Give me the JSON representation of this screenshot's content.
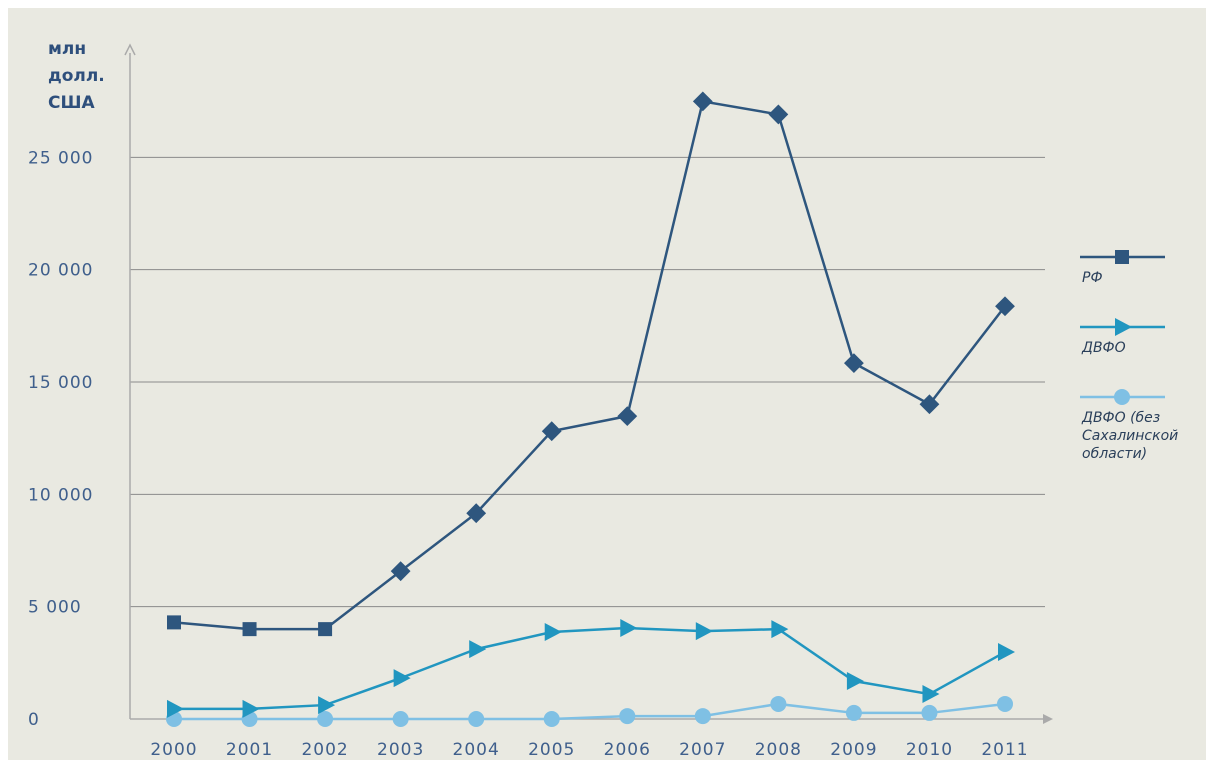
{
  "chart_data": {
    "type": "line",
    "y_axis_label": "млн долл. США",
    "x": [
      "2000",
      "2001",
      "2002",
      "2003",
      "2004",
      "2005",
      "2006",
      "2007",
      "2008",
      "2009",
      "2010",
      "2011"
    ],
    "series": [
      {
        "name": "РФ",
        "color": "#2e567e",
        "values": [
          4300,
          4000,
          4000,
          6580,
          9160,
          12810,
          13480,
          27490,
          26910,
          15840,
          14010,
          18370
        ]
      },
      {
        "name": "ДВФО",
        "color": "#2196c0",
        "values": [
          450,
          450,
          620,
          1820,
          3110,
          3870,
          4050,
          3910,
          4000,
          1690,
          1110,
          2980
        ]
      },
      {
        "name": "ДВФО (без Сахалинской области)",
        "color": "#7fc0e4",
        "values": [
          0,
          0,
          0,
          0,
          0,
          0,
          130,
          130,
          670,
          270,
          270,
          670
        ]
      }
    ],
    "ylim": [
      0,
      30000
    ],
    "yticks": [
      0,
      {
        "value": 5000,
        "label": "5 000"
      },
      {
        "value": 10000,
        "label": "10 000"
      },
      {
        "value": 15000,
        "label": "15 000"
      },
      {
        "value": 20000,
        "label": "20 000"
      },
      {
        "value": 25000,
        "label": "25 000"
      }
    ],
    "grid": true
  }
}
